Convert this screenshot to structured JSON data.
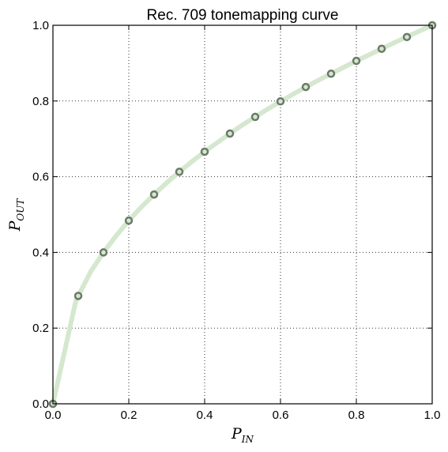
{
  "chart_data": {
    "type": "line",
    "title": "Rec. 709 tonemapping curve",
    "xlabel": {
      "main": "P",
      "sub": "IN"
    },
    "ylabel": {
      "main": "P",
      "sub": "OUT"
    },
    "xlim": [
      0.0,
      1.0
    ],
    "ylim": [
      0.0,
      1.0
    ],
    "xticks": [
      "0.0",
      "0.2",
      "0.4",
      "0.6",
      "0.8",
      "1.0"
    ],
    "yticks": [
      "0.0",
      "0.2",
      "0.4",
      "0.6",
      "0.8",
      "1.0"
    ],
    "tick_values": [
      0.0,
      0.2,
      0.4,
      0.6,
      0.8,
      1.0
    ],
    "grid": true,
    "curve": {
      "x": [
        0.0,
        0.0067,
        0.0133,
        0.02,
        0.0267,
        0.0333,
        0.04,
        0.0467,
        0.0533,
        0.06,
        0.0667,
        0.1,
        0.1333,
        0.1667,
        0.2,
        0.2333,
        0.2667,
        0.3,
        0.3333,
        0.3667,
        0.4,
        0.4333,
        0.4667,
        0.5,
        0.5333,
        0.5667,
        0.6,
        0.6333,
        0.6667,
        0.7,
        0.7333,
        0.7667,
        0.8,
        0.8333,
        0.8667,
        0.9,
        0.9333,
        0.9667,
        1.0
      ],
      "y": [
        0.0,
        0.03,
        0.06,
        0.09,
        0.12,
        0.15,
        0.18,
        0.21,
        0.24,
        0.27,
        0.285,
        0.35,
        0.4,
        0.444,
        0.484,
        0.52,
        0.553,
        0.584,
        0.613,
        0.64,
        0.666,
        0.69,
        0.714,
        0.737,
        0.758,
        0.779,
        0.799,
        0.818,
        0.837,
        0.855,
        0.872,
        0.889,
        0.906,
        0.922,
        0.938,
        0.954,
        0.969,
        0.985,
        1.0
      ],
      "color": "#d5e8cf"
    },
    "markers": {
      "x": [
        0.0,
        0.0667,
        0.1333,
        0.2,
        0.2667,
        0.3333,
        0.4,
        0.4667,
        0.5333,
        0.6,
        0.6667,
        0.7333,
        0.8,
        0.8667,
        0.9333,
        1.0
      ],
      "y": [
        0.0,
        0.285,
        0.4,
        0.484,
        0.553,
        0.613,
        0.666,
        0.714,
        0.758,
        0.799,
        0.837,
        0.872,
        0.906,
        0.938,
        0.969,
        1.0
      ],
      "stroke_color": "#6b7a68",
      "fill_color": "#d5e8cf"
    }
  }
}
